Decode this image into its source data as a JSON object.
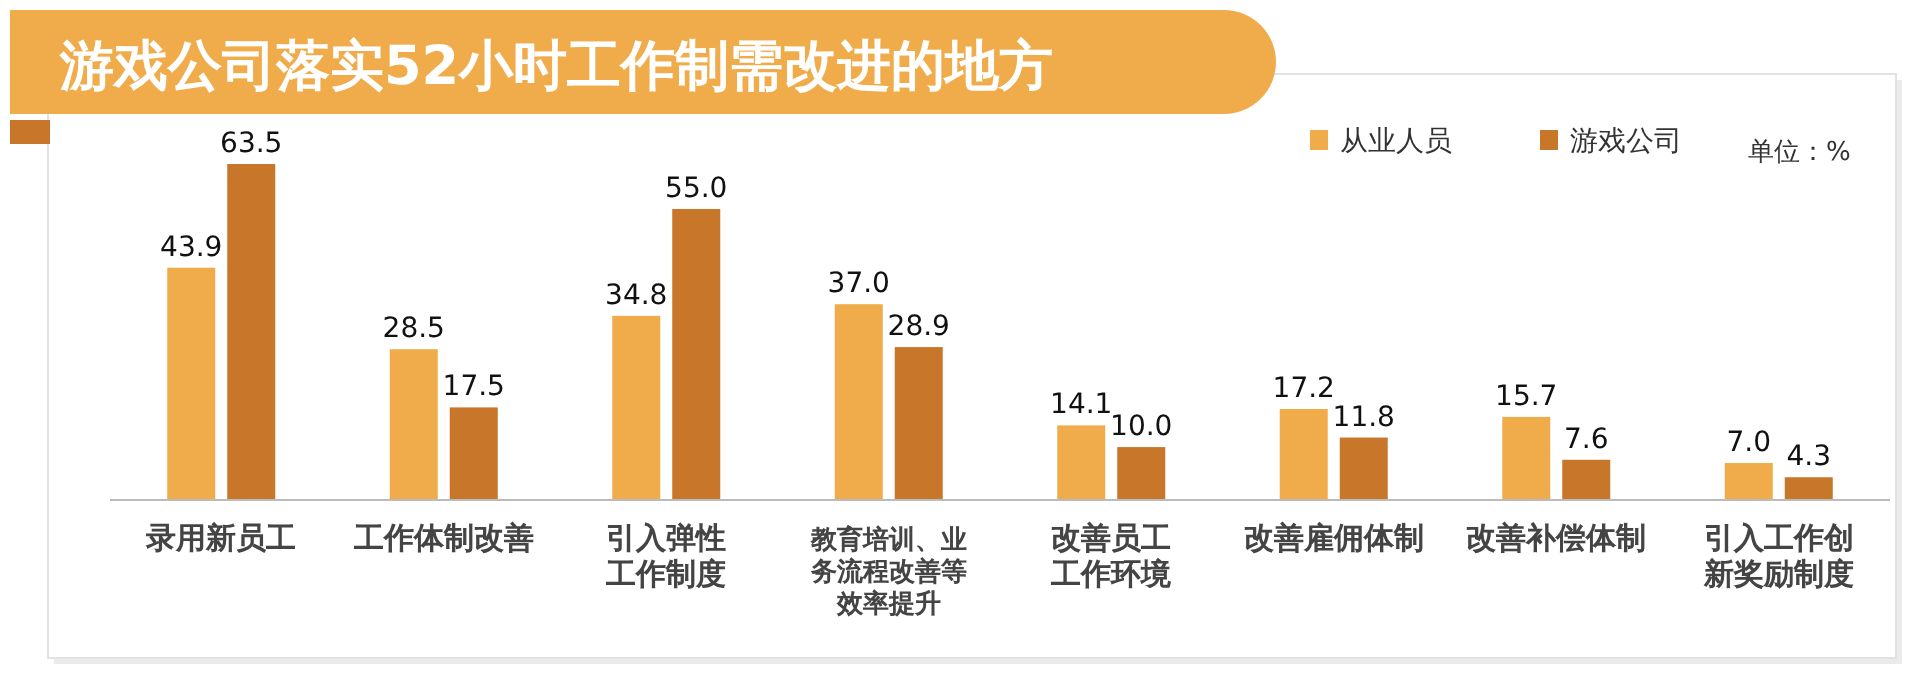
{
  "chart_data": {
    "type": "bar",
    "title": "游戏公司落实52小时工作制需改进的地方",
    "categories": [
      "录用新员工",
      "工作体制改善",
      "引入弹性工作制度",
      "教育培训、业务流程改善等效率提升",
      "改善员工工作环境",
      "改善雇佣体制",
      "改善补偿体制",
      "引入工作创新奖励制度"
    ],
    "series": [
      {
        "name": "从业人员",
        "color": "#f0ac4b",
        "values": [
          43.9,
          28.5,
          34.8,
          37.0,
          14.1,
          17.2,
          15.7,
          7.0
        ],
        "value_labels": [
          "43.9",
          "28.5",
          "34.8",
          "37.0",
          "14.1",
          "17.2",
          "15.7",
          "7.0"
        ]
      },
      {
        "name": "游戏公司",
        "color": "#c8762a",
        "values": [
          63.5,
          17.5,
          55.0,
          28.9,
          10.0,
          11.8,
          7.6,
          4.3
        ],
        "value_labels": [
          "63.5",
          "17.5",
          "55.0",
          "28.9",
          "10.0",
          "11.8",
          "7.6",
          "4.3"
        ]
      }
    ],
    "legend": "top right",
    "annotations": [
      "单位：%"
    ]
  }
}
